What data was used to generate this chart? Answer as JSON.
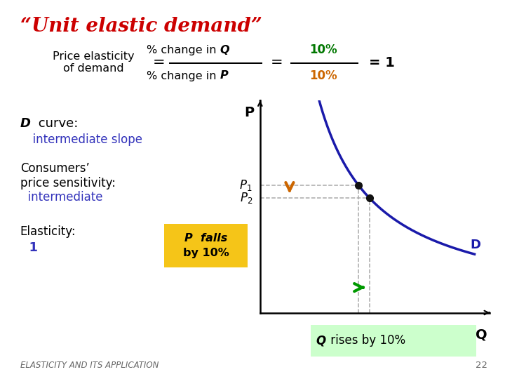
{
  "title": "“Unit elastic demand”",
  "title_color": "#cc0000",
  "bg_color": "#ffffff",
  "formula_label": "Price elasticity\nof demand",
  "formula_num": "% change in ",
  "formula_num_bold": "Q",
  "formula_den": "% change in ",
  "formula_den_bold": "P",
  "formula_num2": "10%",
  "formula_den2": "10%",
  "formula_result": "= 1",
  "formula_num2_color": "#007700",
  "formula_den2_color": "#cc6600",
  "d_curve_label1_normal": " curve:",
  "d_curve_label1_bold": "D",
  "d_curve_label2": "  intermediate slope",
  "d_curve_label2_color": "#3333bb",
  "consumers_label1": "Consumers’",
  "consumers_label2": "price sensitivity:",
  "consumers_label3": "  intermediate",
  "consumers_label3_color": "#3333bb",
  "elasticity_label": "Elasticity:",
  "elasticity_value": "  1",
  "elasticity_value_color": "#3333bb",
  "p_falls_line1": "P  falls",
  "p_falls_line2": "by 10%",
  "p_falls_bg": "#f5c518",
  "q_rises_label_bold": "Q",
  "q_rises_label_rest": " rises by 10%",
  "q_rises_bg": "#ccffcc",
  "curve_color": "#1a1aaa",
  "dot_color": "#111111",
  "dashed_color": "#aaaaaa",
  "arrow_down_color": "#cc6600",
  "arrow_right_color": "#009900",
  "footer_text": "ELASTICITY AND ITS APPLICATION",
  "footer_page": "22",
  "axis_color": "#000000"
}
